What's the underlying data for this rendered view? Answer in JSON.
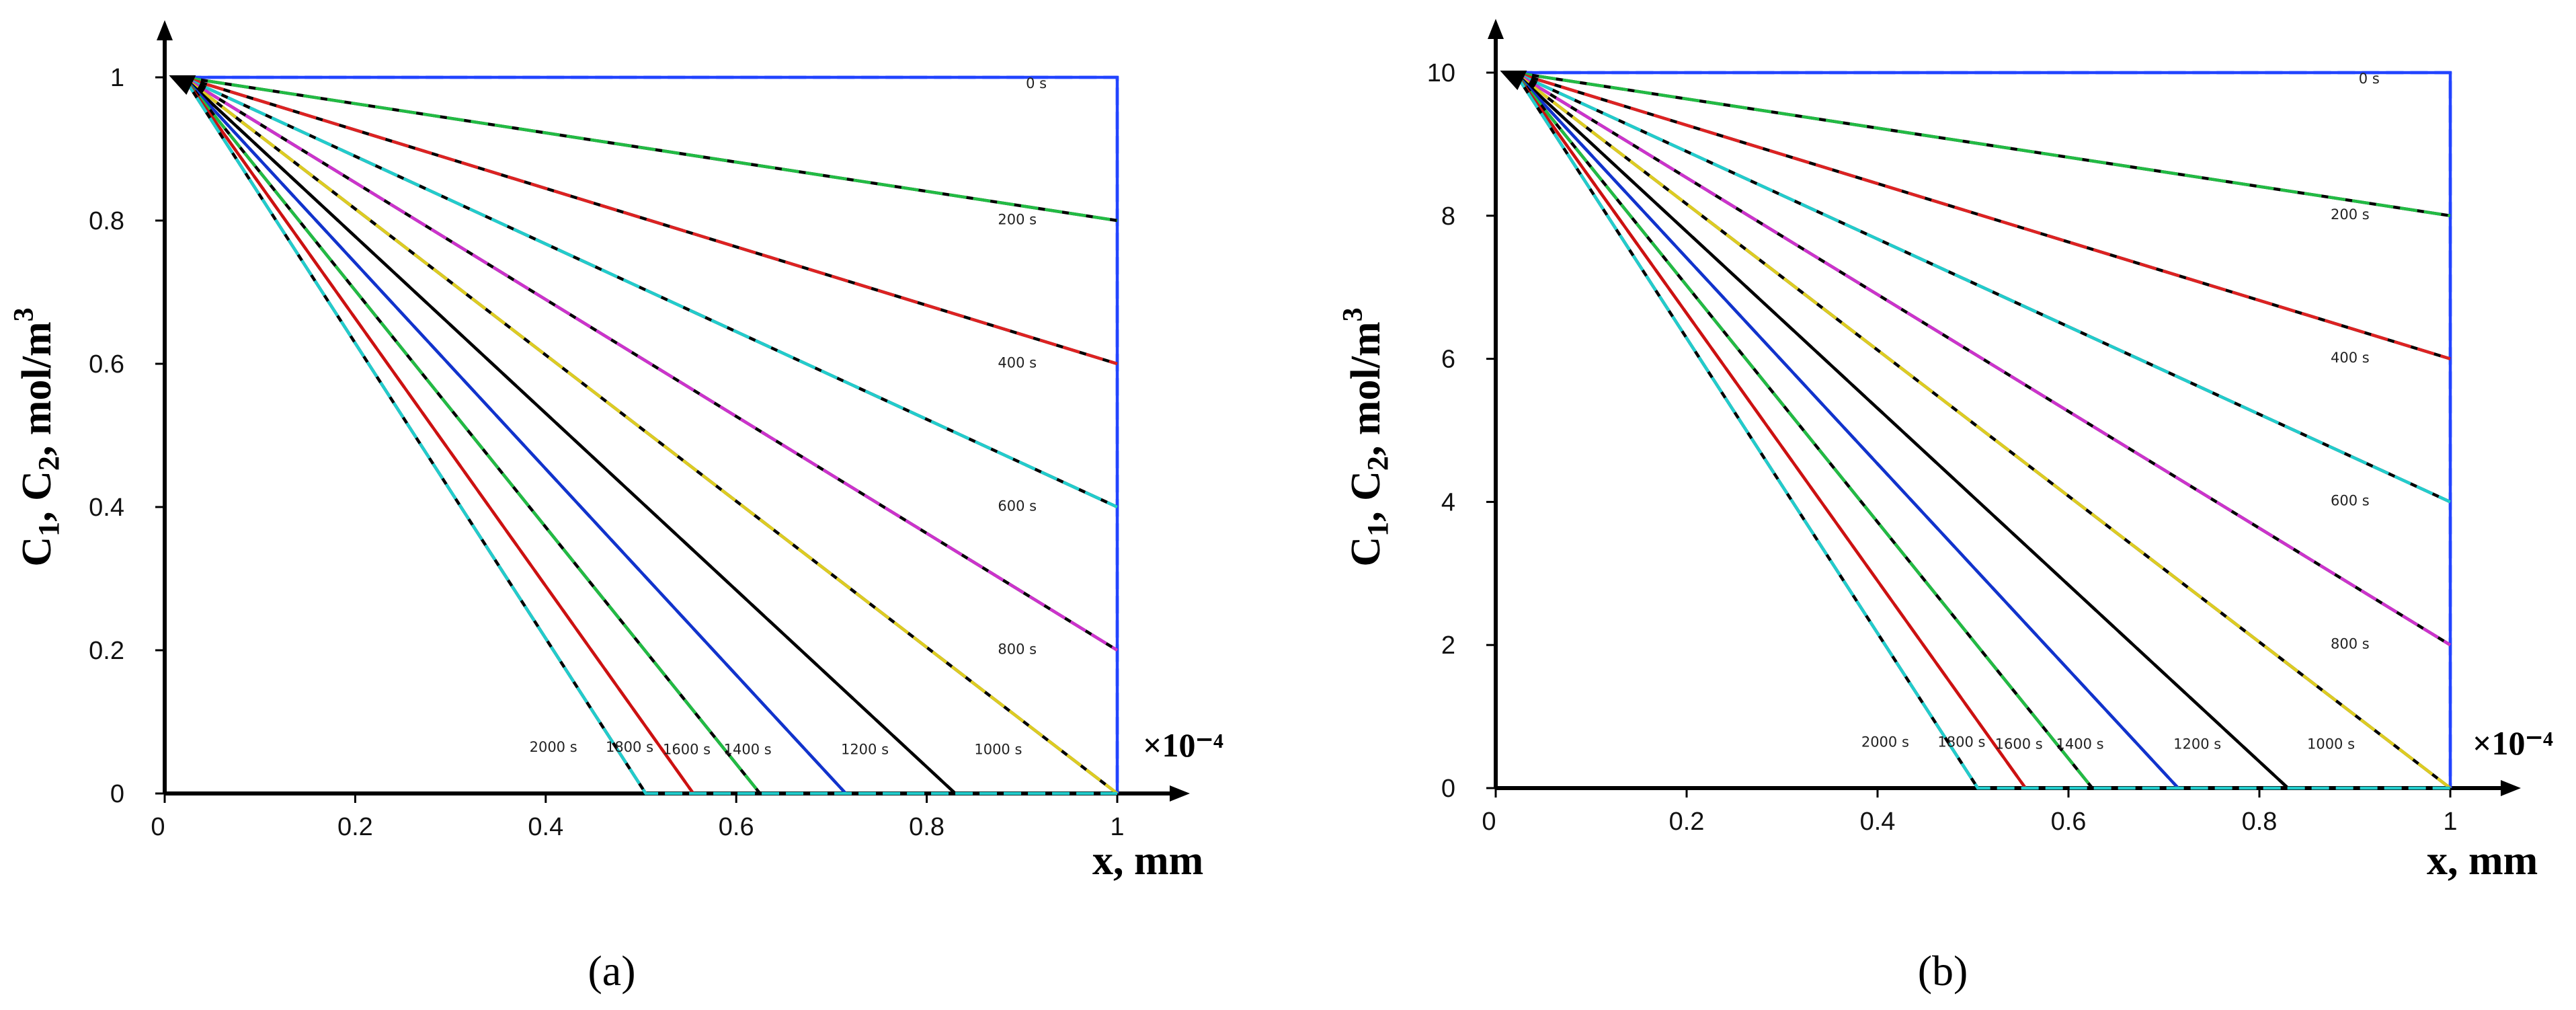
{
  "chart_data": [
    {
      "type": "line",
      "panel_label": "(a)",
      "ylabel_parts": [
        "C",
        "1",
        ", C",
        "2",
        ", mol/m",
        "3"
      ],
      "xlabel": "x, mm",
      "x_multiplier": "×10⁻⁴",
      "xlim": [
        0,
        1
      ],
      "ylim": [
        0,
        1
      ],
      "xticks": [
        "0",
        "0.2",
        "0.4",
        "0.6",
        "0.8",
        "1"
      ],
      "yticks": [
        "0",
        "0.2",
        "0.4",
        "0.6",
        "0.8",
        "1"
      ],
      "series": [
        {
          "name": "0 s",
          "color": "#2244ff",
          "dash": "#2244ff",
          "x": [
            0.02,
            1.0,
            1.0
          ],
          "y": [
            1.0,
            1.0,
            0.0
          ]
        },
        {
          "name": "200 s",
          "color": "#000000",
          "dash": "#22bb44",
          "x": [
            0.02,
            1.0
          ],
          "y": [
            1.0,
            0.8
          ]
        },
        {
          "name": "400 s",
          "color": "#000000",
          "dash": "#dd2222",
          "x": [
            0.02,
            1.0
          ],
          "y": [
            1.0,
            0.6
          ]
        },
        {
          "name": "600 s",
          "color": "#000000",
          "dash": "#22cccc",
          "x": [
            0.02,
            1.0
          ],
          "y": [
            1.0,
            0.4
          ]
        },
        {
          "name": "800 s",
          "color": "#000000",
          "dash": "#cc33cc",
          "x": [
            0.02,
            1.0
          ],
          "y": [
            1.0,
            0.2
          ]
        },
        {
          "name": "1000 s",
          "color": "#000000",
          "dash": "#ddcc22",
          "x": [
            0.02,
            1.0
          ],
          "y": [
            1.0,
            0.0
          ]
        },
        {
          "name": "1200 s",
          "color": "#000000",
          "dash": "#000000",
          "x": [
            0.02,
            0.83
          ],
          "y": [
            1.0,
            0.0
          ]
        },
        {
          "name": "1400 s",
          "color": "#1133cc",
          "dash": "#1133cc",
          "x": [
            0.02,
            0.715
          ],
          "y": [
            1.0,
            0.0
          ]
        },
        {
          "name": "1600 s",
          "color": "#000000",
          "dash": "#22bb44",
          "x": [
            0.02,
            0.625
          ],
          "y": [
            1.0,
            0.0
          ]
        },
        {
          "name": "1800 s",
          "color": "#cc1111",
          "dash": "#cc1111",
          "x": [
            0.02,
            0.555
          ],
          "y": [
            1.0,
            0.0
          ]
        },
        {
          "name": "2000 s",
          "color": "#000000",
          "dash": "#22cccc",
          "x": [
            0.02,
            0.505,
            1.0
          ],
          "y": [
            1.0,
            0.0,
            0.0
          ]
        }
      ],
      "curve_labels": [
        {
          "text": "0 s",
          "x": 0.915,
          "y": 0.985
        },
        {
          "text": "200 s",
          "x": 0.895,
          "y": 0.795
        },
        {
          "text": "400 s",
          "x": 0.895,
          "y": 0.595
        },
        {
          "text": "600 s",
          "x": 0.895,
          "y": 0.395
        },
        {
          "text": "800 s",
          "x": 0.895,
          "y": 0.195
        },
        {
          "text": "1000 s",
          "x": 0.875,
          "y": 0.055
        },
        {
          "text": "1200 s",
          "x": 0.735,
          "y": 0.055
        },
        {
          "text": "1400 s",
          "x": 0.612,
          "y": 0.055
        },
        {
          "text": "1600 s",
          "x": 0.548,
          "y": 0.055
        },
        {
          "text": "1800 s",
          "x": 0.488,
          "y": 0.058
        },
        {
          "text": "2000 s",
          "x": 0.408,
          "y": 0.058
        }
      ]
    },
    {
      "type": "line",
      "panel_label": "(b)",
      "ylabel_parts": [
        "C",
        "1",
        ", C",
        "2",
        ", mol/m",
        "3"
      ],
      "xlabel": "x, mm",
      "x_multiplier": "×10⁻⁴",
      "xlim": [
        0,
        1
      ],
      "ylim": [
        0,
        10
      ],
      "xticks": [
        "0",
        "0.2",
        "0.4",
        "0.6",
        "0.8",
        "1"
      ],
      "yticks": [
        "0",
        "2",
        "4",
        "6",
        "8",
        "10"
      ],
      "series": [
        {
          "name": "0 s",
          "color": "#2244ff",
          "dash": "#2244ff",
          "x": [
            0.02,
            1.0,
            1.0
          ],
          "y": [
            10.0,
            10.0,
            0.0
          ]
        },
        {
          "name": "200 s",
          "color": "#000000",
          "dash": "#22bb44",
          "x": [
            0.02,
            1.0
          ],
          "y": [
            10.0,
            8.0
          ]
        },
        {
          "name": "400 s",
          "color": "#000000",
          "dash": "#dd2222",
          "x": [
            0.02,
            1.0
          ],
          "y": [
            10.0,
            6.0
          ]
        },
        {
          "name": "600 s",
          "color": "#000000",
          "dash": "#22cccc",
          "x": [
            0.02,
            1.0
          ],
          "y": [
            10.0,
            4.0
          ]
        },
        {
          "name": "800 s",
          "color": "#000000",
          "dash": "#cc33cc",
          "x": [
            0.02,
            1.0
          ],
          "y": [
            10.0,
            2.0
          ]
        },
        {
          "name": "1000 s",
          "color": "#000000",
          "dash": "#ddcc22",
          "x": [
            0.02,
            1.0
          ],
          "y": [
            10.0,
            0.0
          ]
        },
        {
          "name": "1200 s",
          "color": "#000000",
          "dash": "#000000",
          "x": [
            0.02,
            0.83
          ],
          "y": [
            10.0,
            0.0
          ]
        },
        {
          "name": "1400 s",
          "color": "#1133cc",
          "dash": "#1133cc",
          "x": [
            0.02,
            0.715
          ],
          "y": [
            10.0,
            0.0
          ]
        },
        {
          "name": "1600 s",
          "color": "#000000",
          "dash": "#22bb44",
          "x": [
            0.02,
            0.625
          ],
          "y": [
            10.0,
            0.0
          ]
        },
        {
          "name": "1800 s",
          "color": "#cc1111",
          "dash": "#cc1111",
          "x": [
            0.02,
            0.555
          ],
          "y": [
            10.0,
            0.0
          ]
        },
        {
          "name": "2000 s",
          "color": "#000000",
          "dash": "#22cccc",
          "x": [
            0.02,
            0.505,
            1.0
          ],
          "y": [
            10.0,
            0.0,
            0.0
          ]
        }
      ],
      "curve_labels": [
        {
          "text": "0 s",
          "x": 0.915,
          "y": 9.85
        },
        {
          "text": "200 s",
          "x": 0.895,
          "y": 7.95
        },
        {
          "text": "400 s",
          "x": 0.895,
          "y": 5.95
        },
        {
          "text": "600 s",
          "x": 0.895,
          "y": 3.95
        },
        {
          "text": "800 s",
          "x": 0.895,
          "y": 1.95
        },
        {
          "text": "1000 s",
          "x": 0.875,
          "y": 0.55
        },
        {
          "text": "1200 s",
          "x": 0.735,
          "y": 0.55
        },
        {
          "text": "1400 s",
          "x": 0.612,
          "y": 0.55
        },
        {
          "text": "1600 s",
          "x": 0.548,
          "y": 0.55
        },
        {
          "text": "1800 s",
          "x": 0.488,
          "y": 0.58
        },
        {
          "text": "2000 s",
          "x": 0.408,
          "y": 0.58
        }
      ]
    }
  ]
}
